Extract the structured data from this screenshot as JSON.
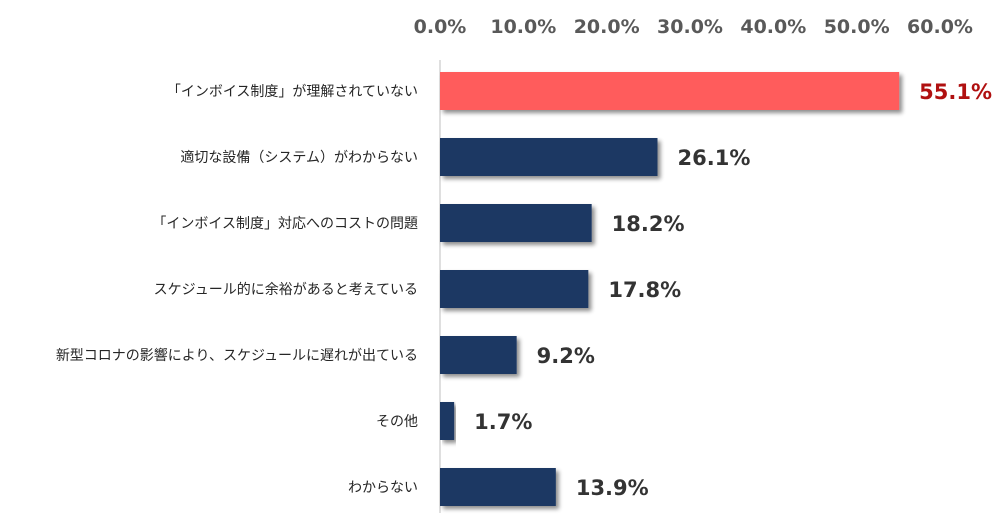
{
  "chart_data": {
    "type": "bar",
    "orientation": "horizontal",
    "categories": [
      "「インボイス制度」が理解されていない",
      "適切な設備（システム）がわからない",
      "「インボイス制度」対応へのコストの問題",
      "スケジュール的に余裕があると考えている",
      "新型コロナの影響により、スケジュールに遅れが出ている",
      "その他",
      "わからない"
    ],
    "values": [
      55.1,
      26.1,
      18.2,
      17.8,
      9.2,
      1.7,
      13.9
    ],
    "value_labels": [
      "55.1%",
      "26.1%",
      "18.2%",
      "17.8%",
      "9.2%",
      "1.7%",
      "13.9%"
    ],
    "x_ticks": [
      0,
      10,
      20,
      30,
      40,
      50,
      60
    ],
    "x_tick_labels": [
      "0.0%",
      "10.0%",
      "20.0%",
      "30.0%",
      "40.0%",
      "50.0%",
      "60.0%"
    ],
    "xlim": [
      0,
      60
    ],
    "axis_position": "top",
    "grid": false,
    "legend": "none",
    "title": "",
    "xlabel": "",
    "ylabel": "",
    "colors": {
      "bar": "#1f3864",
      "highlight_bar": "#ff5b5b",
      "highlight_label": "#b01010",
      "label": "#333333",
      "axis_line": "#bfbfbf"
    },
    "highlight_index": 0
  }
}
